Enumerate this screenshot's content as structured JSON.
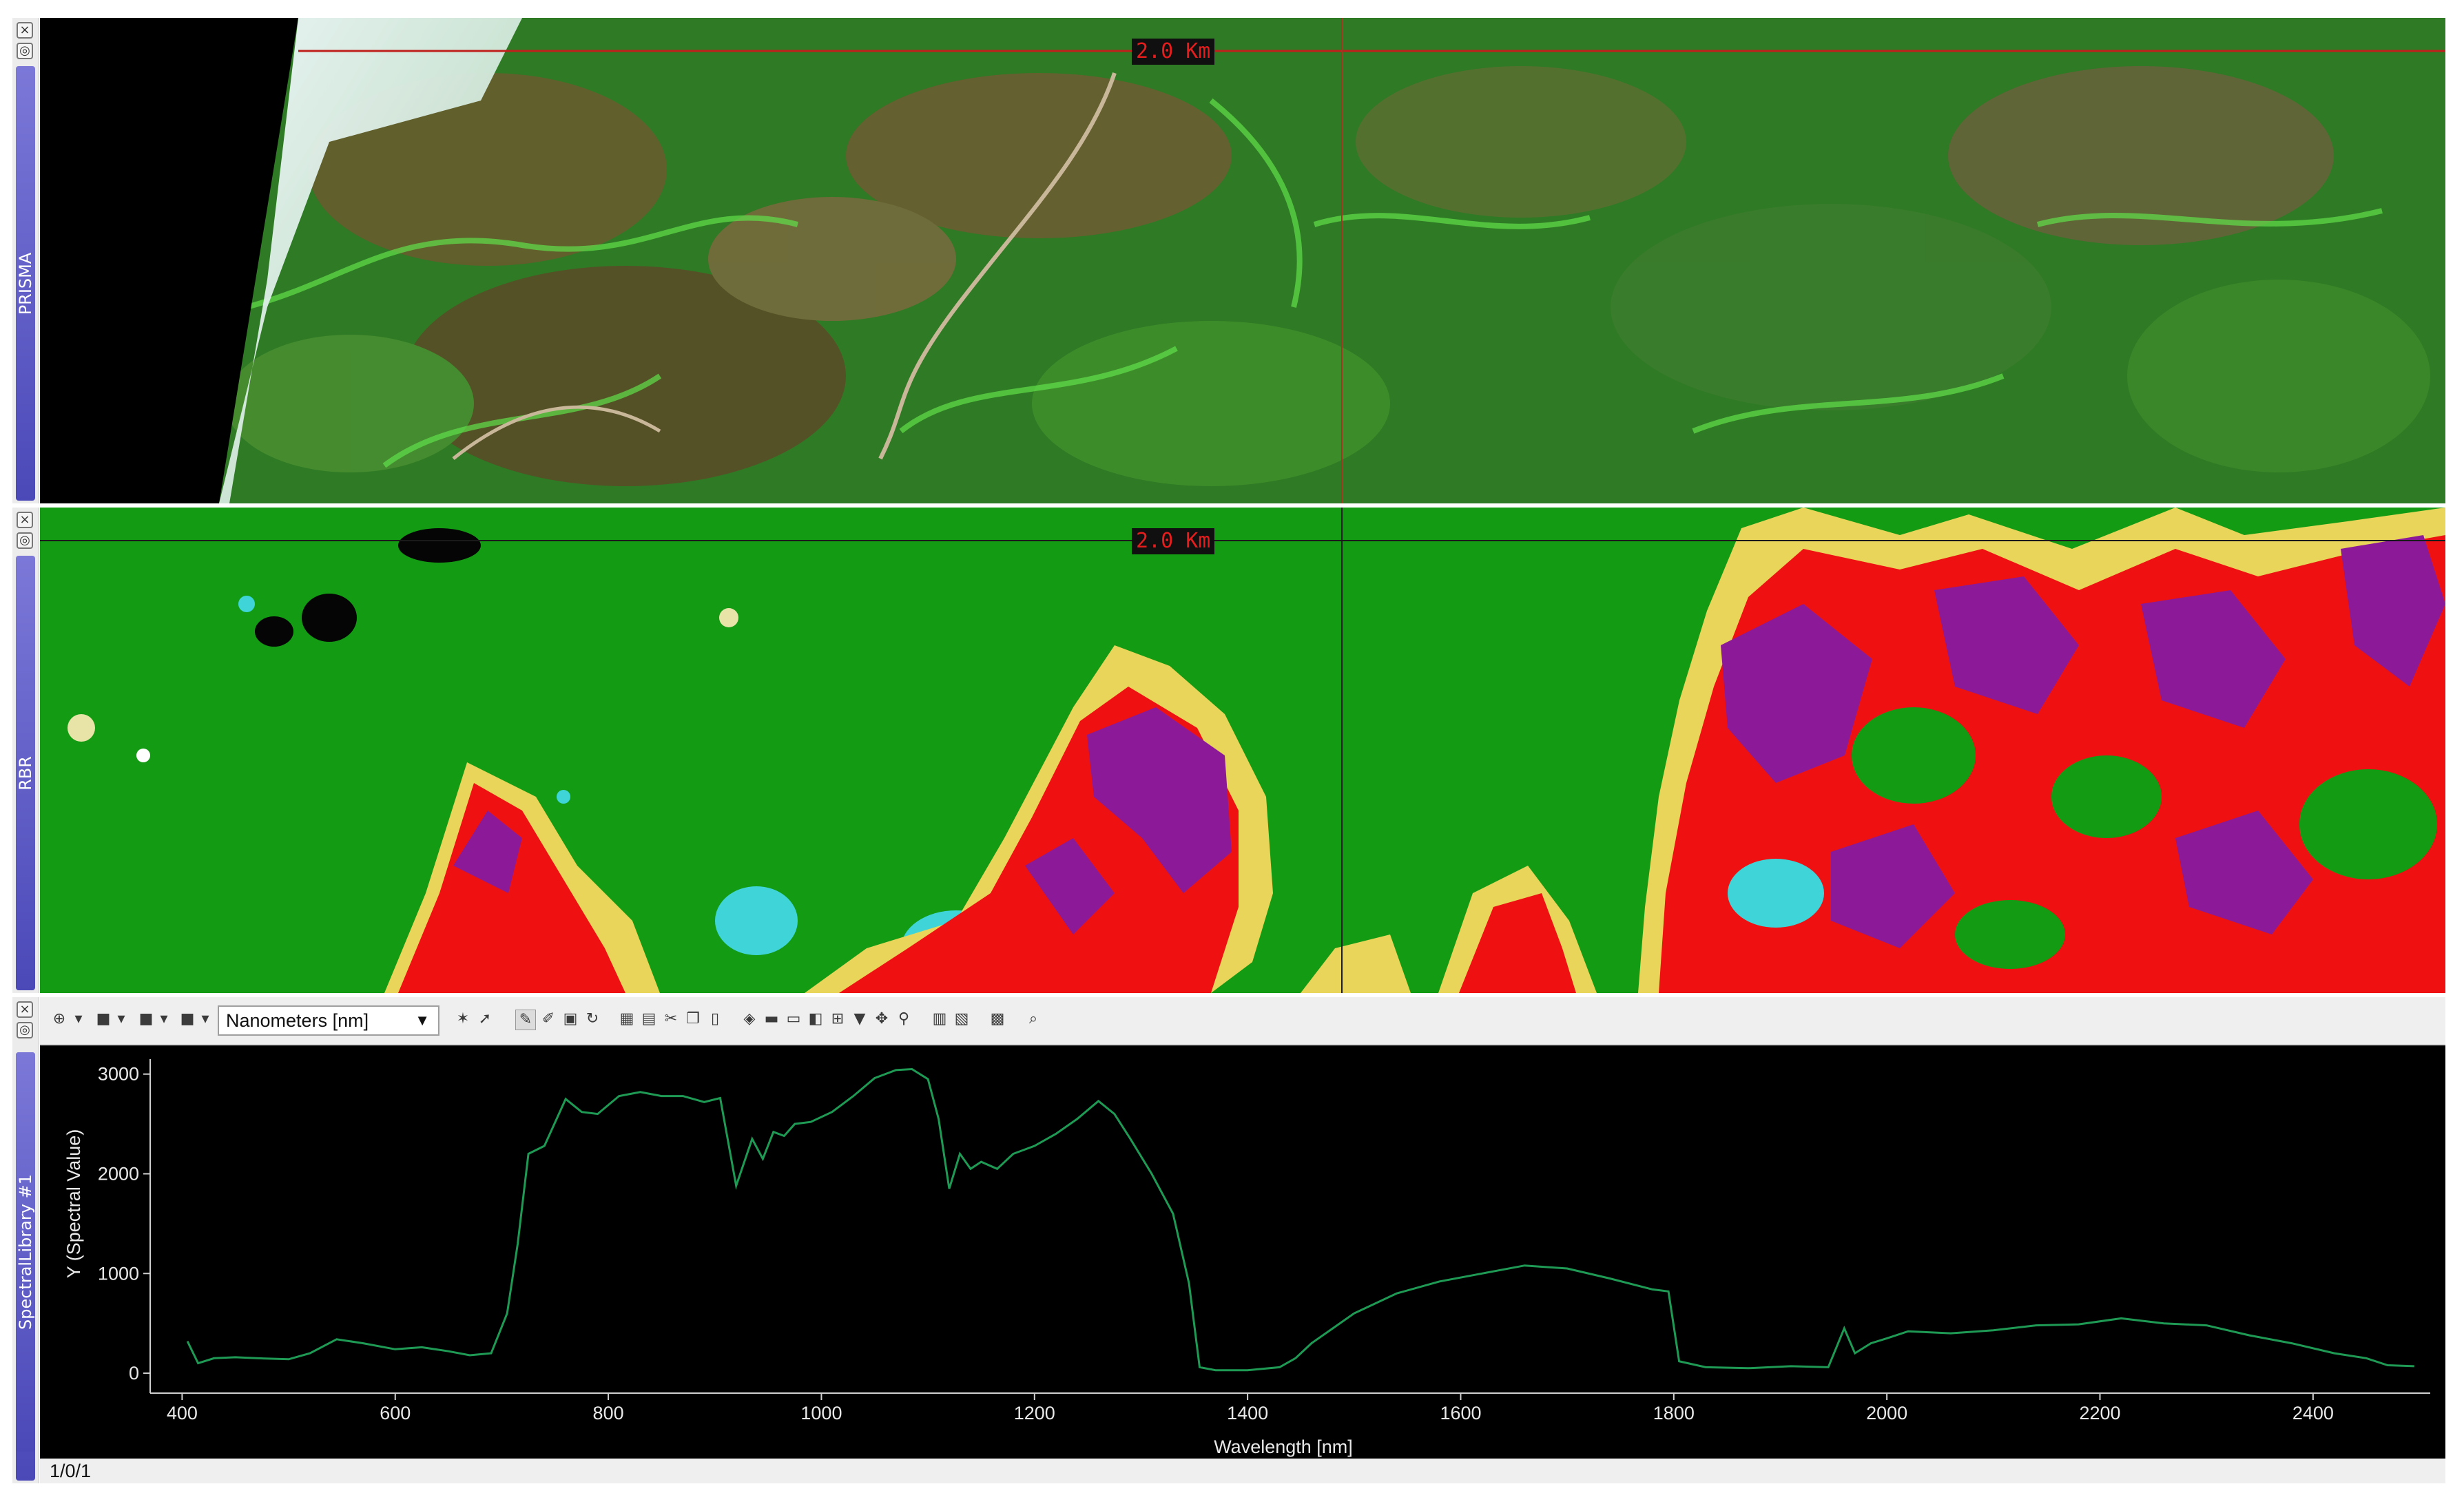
{
  "panels": {
    "prisma": {
      "label": "PRISMA",
      "scale_label": "2.0 Km"
    },
    "rbr": {
      "label": "RBR",
      "scale_label": "2.0 Km"
    },
    "spectral": {
      "unit_selector": "Nanometers [nm]",
      "status": "1/0/1"
    }
  },
  "colors": {
    "vegetation_green": "#139b14",
    "burn_red": "#ef1111",
    "burn_purple": "#8c1a98",
    "burn_yellow": "#e8d55a",
    "water_cyan": "#3fd4d8",
    "plot_line": "#1e9a55",
    "sidebar_label": "#5b59c6",
    "scalebar_text": "#e51d1d"
  },
  "icons": [
    "close-icon",
    "pin-icon",
    "add-icon",
    "dropdown-icon",
    "brush-icon",
    "eraser-icon",
    "edit-icon",
    "save-icon",
    "refresh-icon",
    "cut-icon",
    "copy-icon",
    "filter-icon",
    "zoom-icon"
  ],
  "chart_data": {
    "type": "line",
    "xlabel": "Wavelength [nm]",
    "ylabel": "Y (Spectral Value)",
    "ylabel2": "SpectralLibrary #1",
    "xlim": [
      370,
      2510
    ],
    "ylim": [
      -200,
      3150
    ],
    "xticks": [
      400,
      600,
      800,
      1000,
      1200,
      1400,
      1600,
      1800,
      2000,
      2200,
      2400
    ],
    "yticks": [
      0,
      1000,
      2000,
      3000
    ],
    "grid": false,
    "series": [
      {
        "x": [
          405,
          415,
          430,
          450,
          470,
          500,
          520,
          545,
          570,
          600,
          625,
          650,
          670,
          690,
          705,
          715,
          725,
          740,
          760,
          775,
          790,
          810,
          830,
          850,
          870,
          890,
          905,
          920,
          935,
          945,
          955,
          965,
          975,
          990,
          1010,
          1030,
          1050,
          1070,
          1085,
          1100,
          1110,
          1120,
          1130,
          1140,
          1150,
          1165,
          1180,
          1200,
          1220,
          1240,
          1260,
          1275,
          1290,
          1310,
          1330,
          1345,
          1355,
          1370,
          1400,
          1430,
          1445,
          1460,
          1480,
          1500,
          1540,
          1580,
          1620,
          1660,
          1700,
          1740,
          1780,
          1795,
          1805,
          1830,
          1870,
          1910,
          1945,
          1960,
          1970,
          1985,
          2000,
          2020,
          2060,
          2100,
          2140,
          2180,
          2220,
          2260,
          2300,
          2340,
          2380,
          2420,
          2450,
          2470,
          2495
        ],
        "y": [
          320,
          100,
          150,
          160,
          150,
          140,
          200,
          340,
          300,
          240,
          260,
          220,
          180,
          200,
          600,
          1300,
          2200,
          2280,
          2750,
          2620,
          2600,
          2780,
          2820,
          2780,
          2780,
          2720,
          2760,
          1880,
          2350,
          2150,
          2420,
          2380,
          2500,
          2520,
          2620,
          2780,
          2960,
          3040,
          3050,
          2950,
          2550,
          1850,
          2200,
          2050,
          2120,
          2050,
          2200,
          2280,
          2400,
          2550,
          2730,
          2600,
          2350,
          2000,
          1600,
          900,
          60,
          30,
          30,
          60,
          150,
          300,
          450,
          600,
          800,
          920,
          1000,
          1080,
          1050,
          950,
          840,
          820,
          120,
          60,
          50,
          70,
          60,
          450,
          200,
          300,
          350,
          420,
          400,
          430,
          480,
          490,
          550,
          500,
          480,
          380,
          300,
          200,
          150,
          80,
          70
        ]
      }
    ]
  }
}
